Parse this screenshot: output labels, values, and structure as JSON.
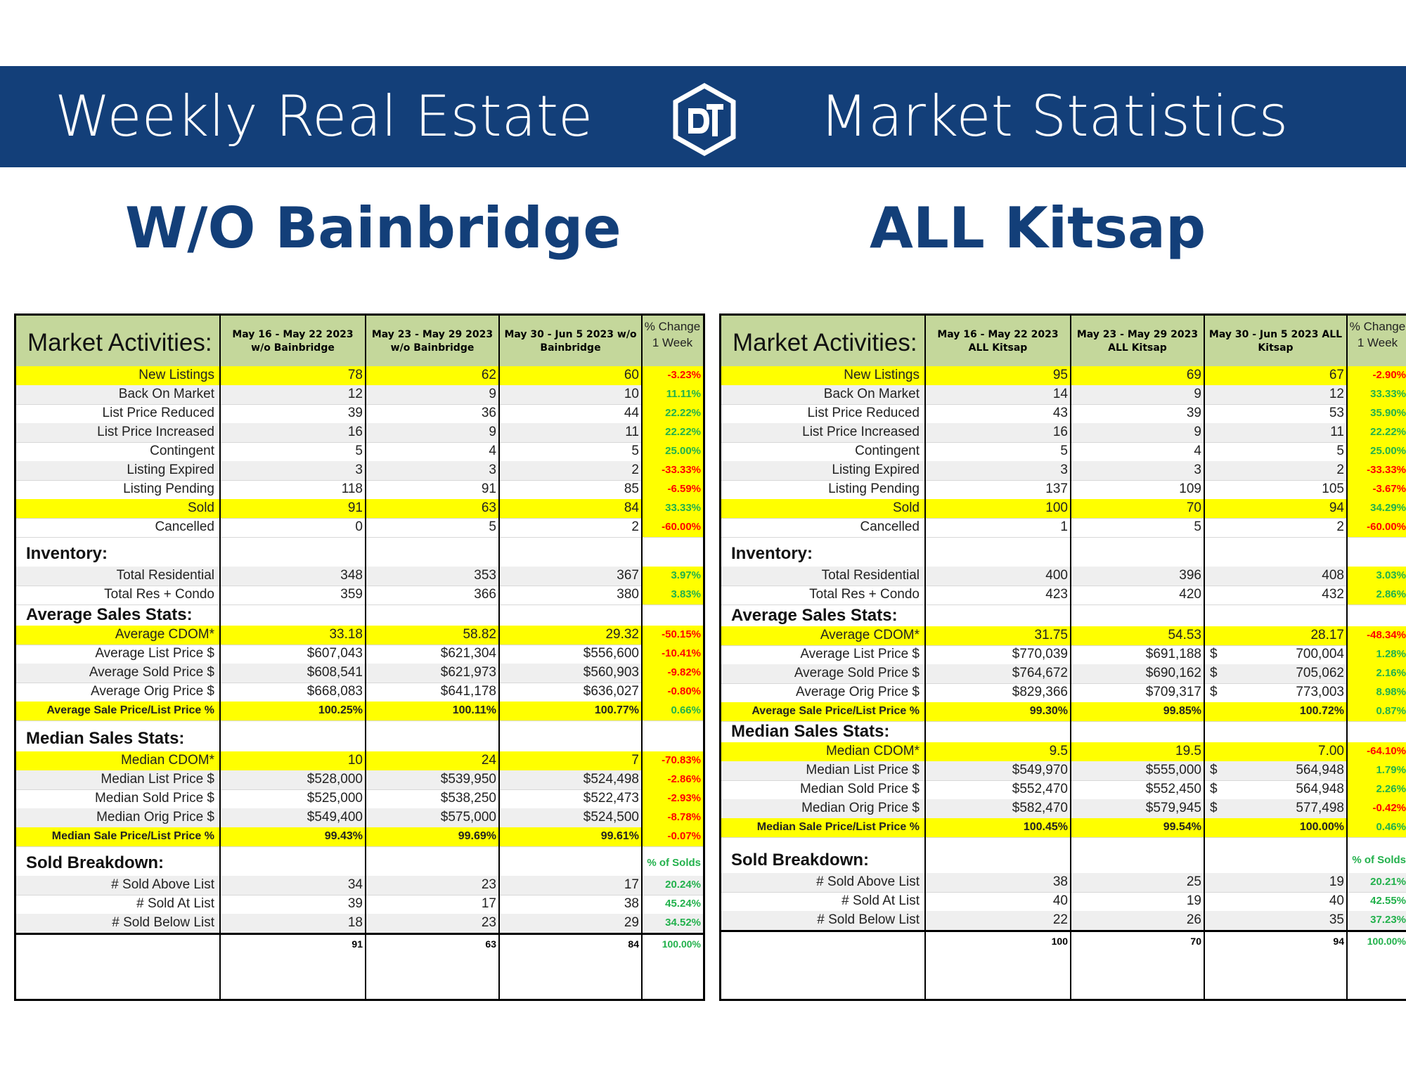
{
  "banner": {
    "left_title": "Weekly Real Estate",
    "right_title": "Market Statistics",
    "logo": "dt-hexagon-logo"
  },
  "regions": {
    "left": "W/O Bainbridge",
    "right": "ALL Kitsap"
  },
  "colors": {
    "banner": "#133f79",
    "header_green": "#c4d79b",
    "highlight_yellow": "#ffff00",
    "negative_red": "#ff0000",
    "positive_green": "#22b14c"
  },
  "tables": [
    {
      "title": "Market Activities:",
      "columns": [
        "May 16 - May 22 2023 w/o Bainbridge",
        "May 23 - May 29 2023 w/o Bainbridge",
        "May 30 - Jun 5 2023 w/o Bainbridge",
        "% Change 1 Week"
      ],
      "rows": [
        {
          "label": "New Listings",
          "v": [
            "78",
            "62",
            "60",
            "-3.23%"
          ]
        },
        {
          "label": "Back On Market",
          "v": [
            "12",
            "9",
            "10",
            "11.11%"
          ]
        },
        {
          "label": "List Price Reduced",
          "v": [
            "39",
            "36",
            "44",
            "22.22%"
          ]
        },
        {
          "label": "List Price Increased",
          "v": [
            "16",
            "9",
            "11",
            "22.22%"
          ]
        },
        {
          "label": "Contingent",
          "v": [
            "5",
            "4",
            "5",
            "25.00%"
          ]
        },
        {
          "label": "Listing Expired",
          "v": [
            "3",
            "3",
            "2",
            "-33.33%"
          ]
        },
        {
          "label": "Listing Pending",
          "v": [
            "118",
            "91",
            "85",
            "-6.59%"
          ]
        },
        {
          "label": "Sold",
          "v": [
            "91",
            "63",
            "84",
            "33.33%"
          ]
        },
        {
          "label": "Cancelled",
          "v": [
            "0",
            "5",
            "2",
            "-60.00%"
          ]
        },
        {
          "section": "Inventory:"
        },
        {
          "label": "Total Residential",
          "v": [
            "348",
            "353",
            "367",
            "3.97%"
          ]
        },
        {
          "label": "Total Res + Condo",
          "v": [
            "359",
            "366",
            "380",
            "3.83%"
          ]
        },
        {
          "section": "Average Sales Stats:"
        },
        {
          "label": "Average CDOM*",
          "v": [
            "33.18",
            "58.82",
            "29.32",
            "-50.15%"
          ]
        },
        {
          "label": "Average List Price $",
          "v": [
            "$607,043",
            "$621,304",
            "$556,600",
            "-10.41%"
          ]
        },
        {
          "label": "Average Sold Price $",
          "v": [
            "$608,541",
            "$621,973",
            "$560,903",
            "-9.82%"
          ]
        },
        {
          "label": "Average Orig Price $",
          "v": [
            "$668,083",
            "$641,178",
            "$636,027",
            "-0.80%"
          ]
        },
        {
          "label": "Average Sale Price/List Price %",
          "v": [
            "100.25%",
            "100.11%",
            "100.77%",
            "0.66%"
          ]
        },
        {
          "section": "Median Sales Stats:"
        },
        {
          "label": "Median CDOM*",
          "v": [
            "10",
            "24",
            "7",
            "-70.83%"
          ]
        },
        {
          "label": "Median List Price $",
          "v": [
            "$528,000",
            "$539,950",
            "$524,498",
            "-2.86%"
          ]
        },
        {
          "label": "Median Sold Price $",
          "v": [
            "$525,000",
            "$538,250",
            "$522,473",
            "-2.93%"
          ]
        },
        {
          "label": "Median Orig Price $",
          "v": [
            "$549,400",
            "$575,000",
            "$524,500",
            "-8.78%"
          ]
        },
        {
          "label": "Median Sale Price/List Price %",
          "v": [
            "99.43%",
            "99.69%",
            "99.61%",
            "-0.07%"
          ]
        },
        {
          "section": "Sold Breakdown:",
          "note": "% of Solds"
        },
        {
          "label": "# Sold Above List",
          "v": [
            "34",
            "23",
            "17",
            "20.24%"
          ]
        },
        {
          "label": "# Sold At List",
          "v": [
            "39",
            "17",
            "38",
            "45.24%"
          ]
        },
        {
          "label": "# Sold Below List",
          "v": [
            "18",
            "23",
            "29",
            "34.52%"
          ]
        },
        {
          "total": [
            "91",
            "63",
            "84",
            "100.00%"
          ]
        }
      ]
    },
    {
      "title": "Market Activities:",
      "columns": [
        "May 16 - May 22 2023 ALL Kitsap",
        "May 23 - May 29 2023 ALL Kitsap",
        "May 30 - Jun 5 2023 ALL Kitsap",
        "% Change 1 Week"
      ],
      "rows": [
        {
          "label": "New Listings",
          "v": [
            "95",
            "69",
            "67",
            "-2.90%"
          ]
        },
        {
          "label": "Back On Market",
          "v": [
            "14",
            "9",
            "12",
            "33.33%"
          ]
        },
        {
          "label": "List Price Reduced",
          "v": [
            "43",
            "39",
            "53",
            "35.90%"
          ]
        },
        {
          "label": "List Price Increased",
          "v": [
            "16",
            "9",
            "11",
            "22.22%"
          ]
        },
        {
          "label": "Contingent",
          "v": [
            "5",
            "4",
            "5",
            "25.00%"
          ]
        },
        {
          "label": "Listing Expired",
          "v": [
            "3",
            "3",
            "2",
            "-33.33%"
          ]
        },
        {
          "label": "Listing Pending",
          "v": [
            "137",
            "109",
            "105",
            "-3.67%"
          ]
        },
        {
          "label": "Sold",
          "v": [
            "100",
            "70",
            "94",
            "34.29%"
          ]
        },
        {
          "label": "Cancelled",
          "v": [
            "1",
            "5",
            "2",
            "-60.00%"
          ]
        },
        {
          "section": "Inventory:"
        },
        {
          "label": "Total Residential",
          "v": [
            "400",
            "396",
            "408",
            "3.03%"
          ]
        },
        {
          "label": "Total Res + Condo",
          "v": [
            "423",
            "420",
            "432",
            "2.86%"
          ]
        },
        {
          "section": "Average Sales Stats:"
        },
        {
          "label": "Average CDOM*",
          "v": [
            "31.75",
            "54.53",
            "28.17",
            "-48.34%"
          ]
        },
        {
          "label": "Average List Price $",
          "v": [
            "$770,039",
            "$691,188",
            "700,004",
            "1.28%"
          ],
          "dollar": "$"
        },
        {
          "label": "Average Sold Price $",
          "v": [
            "$764,672",
            "$690,162",
            "705,062",
            "2.16%"
          ],
          "dollar": "$"
        },
        {
          "label": "Average Orig Price $",
          "v": [
            "$829,366",
            "$709,317",
            "773,003",
            "8.98%"
          ],
          "dollar": "$"
        },
        {
          "label": "Average Sale Price/List Price %",
          "v": [
            "99.30%",
            "99.85%",
            "100.72%",
            "0.87%"
          ]
        },
        {
          "section": "Median Sales Stats:"
        },
        {
          "label": "Median CDOM*",
          "v": [
            "9.5",
            "19.5",
            "7.00",
            "-64.10%"
          ]
        },
        {
          "label": "Median List Price $",
          "v": [
            "$549,970",
            "$555,000",
            "564,948",
            "1.79%"
          ],
          "dollar": "$"
        },
        {
          "label": "Median Sold Price $",
          "v": [
            "$552,470",
            "$552,450",
            "564,948",
            "2.26%"
          ],
          "dollar": "$"
        },
        {
          "label": "Median Orig Price $",
          "v": [
            "$582,470",
            "$579,945",
            "577,498",
            "-0.42%"
          ],
          "dollar": "$"
        },
        {
          "label": "Median Sale Price/List Price %",
          "v": [
            "100.45%",
            "99.54%",
            "100.00%",
            "0.46%"
          ]
        },
        {
          "section": "Sold Breakdown:",
          "note": "% of Solds"
        },
        {
          "label": "# Sold Above List",
          "v": [
            "38",
            "25",
            "19",
            "20.21%"
          ]
        },
        {
          "label": "# Sold At List",
          "v": [
            "40",
            "19",
            "40",
            "42.55%"
          ]
        },
        {
          "label": "# Sold Below List",
          "v": [
            "22",
            "26",
            "35",
            "37.23%"
          ]
        },
        {
          "total": [
            "100",
            "70",
            "94",
            "100.00%"
          ]
        }
      ]
    }
  ]
}
